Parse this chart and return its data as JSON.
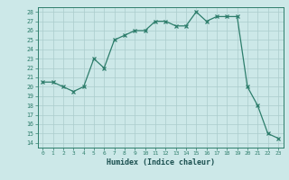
{
  "x": [
    0,
    1,
    2,
    3,
    4,
    5,
    6,
    7,
    8,
    9,
    10,
    11,
    12,
    13,
    14,
    15,
    16,
    17,
    18,
    19,
    20,
    21,
    22,
    23
  ],
  "y": [
    20.5,
    20.5,
    20.0,
    19.5,
    20.0,
    23.0,
    22.0,
    25.0,
    25.5,
    26.0,
    26.0,
    27.0,
    27.0,
    26.5,
    26.5,
    28.0,
    27.0,
    27.5,
    27.5,
    27.5,
    20.0,
    18.0,
    15.0,
    14.5
  ],
  "xlabel": "Humidex (Indice chaleur)",
  "line_color": "#2d7d6b",
  "marker": "x",
  "bg_color": "#cce8e8",
  "grid_color": "#aacccc",
  "xlim": [
    -0.5,
    23.5
  ],
  "ylim": [
    13.5,
    28.5
  ],
  "xticks": [
    0,
    1,
    2,
    3,
    4,
    5,
    6,
    7,
    8,
    9,
    10,
    11,
    12,
    13,
    14,
    15,
    16,
    17,
    18,
    19,
    20,
    21,
    22,
    23
  ],
  "yticks": [
    14,
    15,
    16,
    17,
    18,
    19,
    20,
    21,
    22,
    23,
    24,
    25,
    26,
    27,
    28
  ]
}
